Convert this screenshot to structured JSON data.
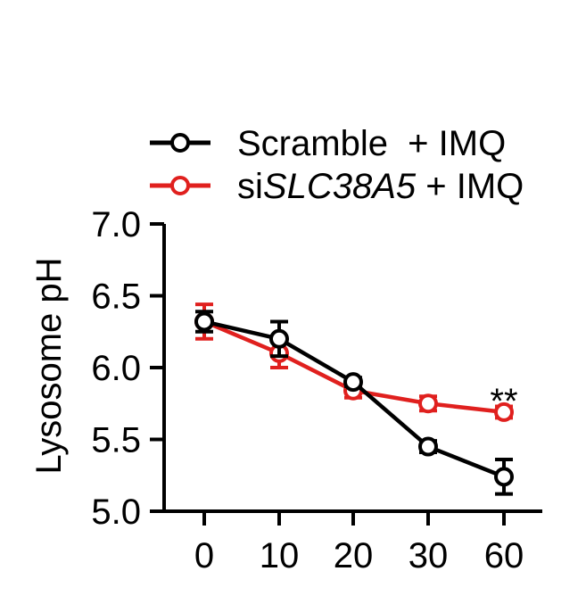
{
  "chart_data": {
    "type": "line",
    "xlabel": "",
    "ylabel": "Lysosome pH",
    "categories": [
      "0",
      "10",
      "20",
      "30",
      "60"
    ],
    "ylim": [
      5.0,
      7.0
    ],
    "yticks": [
      "5.0",
      "5.5",
      "6.0",
      "6.5",
      "7.0"
    ],
    "grid": false,
    "legend_position": "top",
    "series": [
      {
        "name": "Scramble  + IMQ",
        "color": "#000000",
        "values": [
          6.32,
          6.2,
          5.9,
          5.45,
          5.24
        ],
        "errors": [
          0.07,
          0.12,
          0.03,
          0.04,
          0.12
        ]
      },
      {
        "name_prefix": "si",
        "name_gene": "SLC38A5",
        "name_suffix": " + IMQ",
        "color": "#e0201e",
        "values": [
          6.32,
          6.1,
          5.84,
          5.75,
          5.69
        ],
        "errors": [
          0.12,
          0.1,
          0.05,
          0.05,
          0.04
        ]
      }
    ],
    "annotations": [
      {
        "text": "**",
        "category": "60",
        "y": 5.82
      }
    ]
  }
}
